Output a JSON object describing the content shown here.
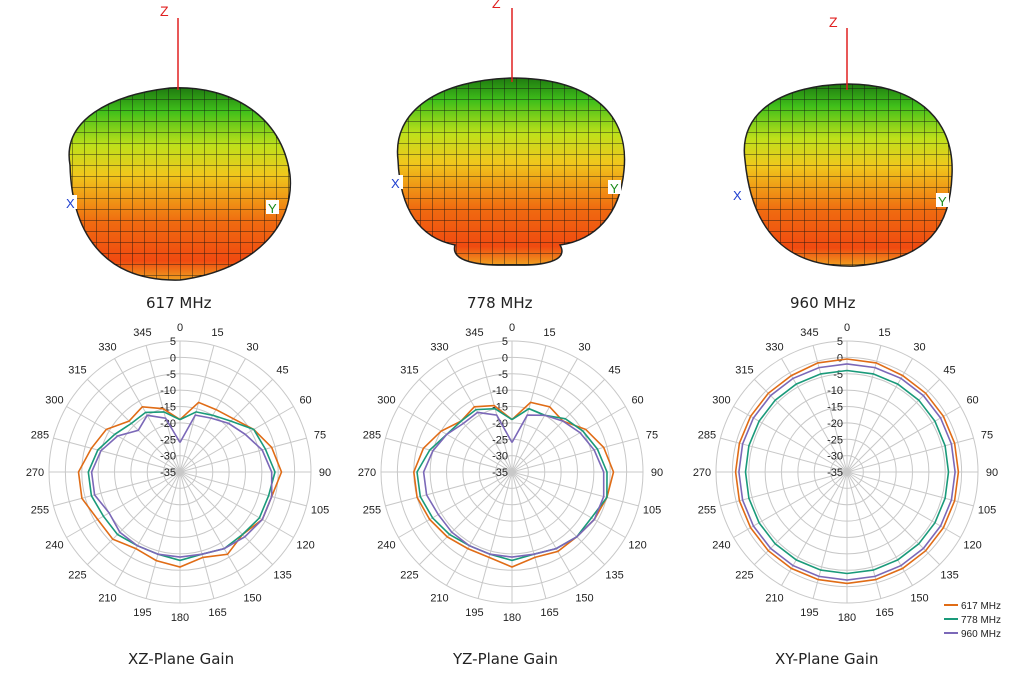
{
  "frequency_labels": [
    "617 MHz",
    "778 MHz",
    "960 MHz"
  ],
  "axis_labels": {
    "z": "Z",
    "x": "X",
    "y": "Y"
  },
  "colors": {
    "617": "#e06c16",
    "778": "#1a9a7a",
    "960": "#7b68b8",
    "grid": "#c8c8c8"
  },
  "chart_data": [
    {
      "type": "polar-line",
      "title": "XZ-Plane Gain",
      "angle_ticks": [
        0,
        15,
        30,
        45,
        60,
        75,
        90,
        105,
        120,
        135,
        150,
        165,
        180,
        195,
        210,
        225,
        240,
        255,
        270,
        285,
        300,
        315,
        330,
        345
      ],
      "radial_ticks": [
        5,
        0,
        -5,
        -10,
        -15,
        -20,
        -25,
        -30,
        -35
      ],
      "rlim": [
        -35,
        5
      ],
      "legend": "none",
      "series": [
        {
          "name": "617 MHz",
          "angles": [
            0,
            15,
            30,
            45,
            60,
            75,
            90,
            105,
            120,
            135,
            150,
            165,
            180,
            195,
            210,
            225,
            240,
            255,
            270,
            285,
            300,
            315,
            330,
            345
          ],
          "values": [
            -19,
            -13,
            -13,
            -12,
            -9,
            -6,
            -4,
            -6,
            -6,
            -8,
            -6,
            -8,
            -6,
            -7,
            -8,
            -6,
            -6,
            -4,
            -4,
            -7,
            -9,
            -13,
            -12,
            -15
          ]
        },
        {
          "name": "778 MHz",
          "angles": [
            0,
            15,
            30,
            45,
            60,
            75,
            90,
            105,
            120,
            135,
            150,
            165,
            180,
            195,
            210,
            225,
            240,
            255,
            270,
            285,
            300,
            315,
            330,
            345
          ],
          "values": [
            -19,
            -16,
            -15,
            -13,
            -9,
            -8,
            -6,
            -7,
            -7,
            -8,
            -8,
            -9,
            -8,
            -9,
            -9,
            -8,
            -8,
            -7,
            -7,
            -9,
            -12,
            -14,
            -14,
            -16
          ]
        },
        {
          "name": "960 MHz",
          "angles": [
            0,
            15,
            30,
            45,
            60,
            75,
            90,
            105,
            120,
            135,
            150,
            165,
            180,
            195,
            210,
            225,
            240,
            255,
            270,
            285,
            300,
            315,
            330,
            345
          ],
          "values": [
            -26,
            -17,
            -16,
            -14,
            -12,
            -9,
            -7,
            -6,
            -6,
            -7,
            -8,
            -9,
            -9,
            -9,
            -9,
            -9,
            -10,
            -8,
            -8,
            -10,
            -13,
            -17,
            -15,
            -18
          ]
        }
      ]
    },
    {
      "type": "polar-line",
      "title": "YZ-Plane Gain",
      "angle_ticks": [
        0,
        15,
        30,
        45,
        60,
        75,
        90,
        105,
        120,
        135,
        150,
        165,
        180,
        195,
        210,
        225,
        240,
        255,
        270,
        285,
        300,
        315,
        330,
        345
      ],
      "radial_ticks": [
        5,
        0,
        -5,
        -10,
        -15,
        -20,
        -25,
        -30,
        -35
      ],
      "rlim": [
        -35,
        5
      ],
      "legend": "none",
      "series": [
        {
          "name": "617 MHz",
          "angles": [
            0,
            15,
            30,
            45,
            60,
            75,
            90,
            105,
            120,
            135,
            150,
            165,
            180,
            195,
            210,
            225,
            240,
            255,
            270,
            285,
            300,
            315,
            330,
            345
          ],
          "values": [
            -19,
            -13,
            -12,
            -13,
            -9,
            -6,
            -4,
            -5,
            -6,
            -7,
            -7,
            -8,
            -6,
            -8,
            -8,
            -7,
            -6,
            -5,
            -5,
            -7,
            -10,
            -13,
            -12,
            -14
          ]
        },
        {
          "name": "778 MHz",
          "angles": [
            0,
            15,
            30,
            45,
            60,
            75,
            90,
            105,
            120,
            135,
            150,
            165,
            180,
            195,
            210,
            225,
            240,
            255,
            270,
            285,
            300,
            315,
            330,
            345
          ],
          "values": [
            -19,
            -15,
            -15,
            -12,
            -10,
            -8,
            -6,
            -5,
            -7,
            -7,
            -8,
            -9,
            -8,
            -9,
            -9,
            -8,
            -7,
            -6,
            -6,
            -9,
            -12,
            -13,
            -13,
            -15
          ]
        },
        {
          "name": "960 MHz",
          "angles": [
            0,
            15,
            30,
            45,
            60,
            75,
            90,
            105,
            120,
            135,
            150,
            165,
            180,
            195,
            210,
            225,
            240,
            255,
            270,
            285,
            300,
            315,
            330,
            345
          ],
          "values": [
            -26,
            -17,
            -15,
            -13,
            -11,
            -9,
            -7,
            -6,
            -6,
            -7,
            -8,
            -9,
            -9,
            -9,
            -9,
            -9,
            -9,
            -8,
            -8,
            -10,
            -12,
            -14,
            -14,
            -17
          ]
        }
      ]
    },
    {
      "type": "polar-line",
      "title": "XY-Plane Gain",
      "angle_ticks": [
        0,
        15,
        30,
        45,
        60,
        75,
        90,
        105,
        120,
        135,
        150,
        165,
        180,
        195,
        210,
        225,
        240,
        255,
        270,
        285,
        300,
        315,
        330,
        345
      ],
      "radial_ticks": [
        5,
        0,
        -5,
        -10,
        -15,
        -20,
        -25,
        -30,
        -35
      ],
      "rlim": [
        -35,
        5
      ],
      "legend": "bottom-right",
      "series": [
        {
          "name": "617 MHz",
          "angles": [
            0,
            15,
            30,
            45,
            60,
            75,
            90,
            105,
            120,
            135,
            150,
            165,
            180,
            195,
            210,
            225,
            240,
            255,
            270,
            285,
            300,
            315,
            330,
            345
          ],
          "values": [
            -0.5,
            -0.5,
            -1,
            -1,
            -1,
            -1,
            -1,
            -1,
            -1,
            -1,
            -1,
            -1,
            -1,
            -1,
            -1,
            -1,
            -1,
            -1,
            -1,
            -1,
            -1,
            -1,
            -1,
            -0.5
          ]
        },
        {
          "name": "778 MHz",
          "angles": [
            0,
            15,
            30,
            45,
            60,
            75,
            90,
            105,
            120,
            135,
            150,
            165,
            180,
            195,
            210,
            225,
            240,
            255,
            270,
            285,
            300,
            315,
            330,
            345
          ],
          "values": [
            -4,
            -4,
            -4,
            -4,
            -4,
            -4,
            -4,
            -4,
            -4,
            -4,
            -4,
            -4,
            -4,
            -4,
            -4,
            -4,
            -4,
            -4,
            -4,
            -4,
            -4,
            -4,
            -4,
            -4
          ]
        },
        {
          "name": "960 MHz",
          "angles": [
            0,
            15,
            30,
            45,
            60,
            75,
            90,
            105,
            120,
            135,
            150,
            165,
            180,
            195,
            210,
            225,
            240,
            255,
            270,
            285,
            300,
            315,
            330,
            345
          ],
          "values": [
            -2,
            -2,
            -2,
            -2,
            -2,
            -2,
            -2,
            -2,
            -2,
            -2,
            -2,
            -2,
            -2,
            -2,
            -2,
            -2,
            -2,
            -2,
            -2,
            -2,
            -2,
            -2,
            -2,
            -2
          ]
        }
      ]
    }
  ]
}
